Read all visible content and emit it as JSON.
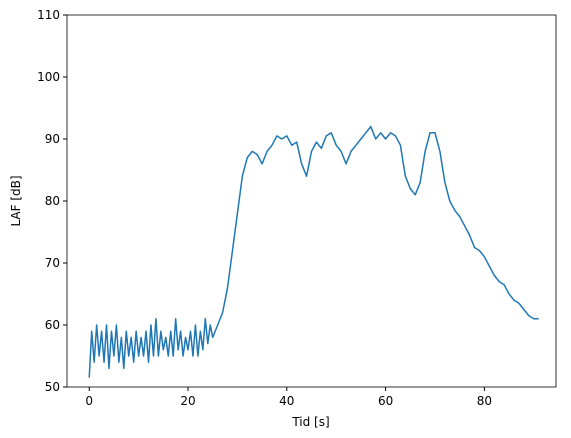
{
  "chart_data": {
    "type": "line",
    "xlabel": "Tid [s]",
    "ylabel": "LAF [dB]",
    "x": [
      0,
      0.5,
      1,
      1.5,
      2,
      2.5,
      3,
      3.5,
      4,
      4.5,
      5,
      5.5,
      6,
      6.5,
      7,
      7.5,
      8,
      8.5,
      9,
      9.5,
      10,
      10.5,
      11,
      11.5,
      12,
      12.5,
      13,
      13.5,
      14,
      14.5,
      15,
      15.5,
      16,
      16.5,
      17,
      17.5,
      18,
      18.5,
      19,
      19.5,
      20,
      20.5,
      21,
      21.5,
      22,
      22.5,
      23,
      23.5,
      24,
      24.5,
      25,
      26,
      27,
      28,
      29,
      30,
      31,
      32,
      33,
      34,
      35,
      36,
      37,
      38,
      39,
      40,
      41,
      42,
      43,
      44,
      45,
      46,
      47,
      48,
      49,
      50,
      51,
      52,
      53,
      54,
      55,
      56,
      57,
      58,
      59,
      60,
      61,
      62,
      63,
      64,
      65,
      66,
      67,
      68,
      69,
      70,
      71,
      72,
      73,
      74,
      75,
      76,
      77,
      78,
      79,
      80,
      81,
      82,
      83,
      84,
      85,
      86,
      87,
      88,
      89,
      90,
      91
    ],
    "series": [
      {
        "color": "#1f77b4",
        "values": [
          51.5,
          59,
          54,
          60,
          55,
          59,
          54,
          60,
          53,
          59,
          55,
          60,
          54,
          58,
          53,
          59,
          55,
          58,
          54,
          59,
          55,
          58,
          55,
          59,
          54,
          60,
          55,
          61,
          55,
          59,
          56,
          58,
          55,
          59,
          55,
          61,
          56,
          59,
          55,
          58,
          56,
          59,
          55,
          60,
          55,
          59,
          56,
          61,
          57,
          60,
          58,
          60,
          62,
          66,
          72,
          78,
          84,
          87,
          88,
          87.5,
          86,
          88,
          89,
          90.5,
          90,
          90.5,
          89,
          89.5,
          86,
          84,
          88,
          89.5,
          88.5,
          90.5,
          91,
          89,
          88,
          86,
          88,
          89,
          90,
          91,
          92,
          90,
          91,
          90,
          91,
          90.5,
          89,
          84,
          82,
          81,
          83,
          88,
          91,
          91,
          88,
          83,
          80,
          78.5,
          77.5,
          76,
          74.5,
          72.5,
          72,
          71,
          69.5,
          68,
          67,
          66.5,
          65,
          64,
          63.5,
          62.5,
          61.5,
          61,
          61
        ]
      }
    ],
    "xlim": [
      -4.5,
      94.5
    ],
    "ylim": [
      50,
      110
    ],
    "xticks": [
      0,
      20,
      40,
      60,
      80
    ],
    "yticks": [
      50,
      60,
      70,
      80,
      90,
      100,
      110
    ]
  }
}
